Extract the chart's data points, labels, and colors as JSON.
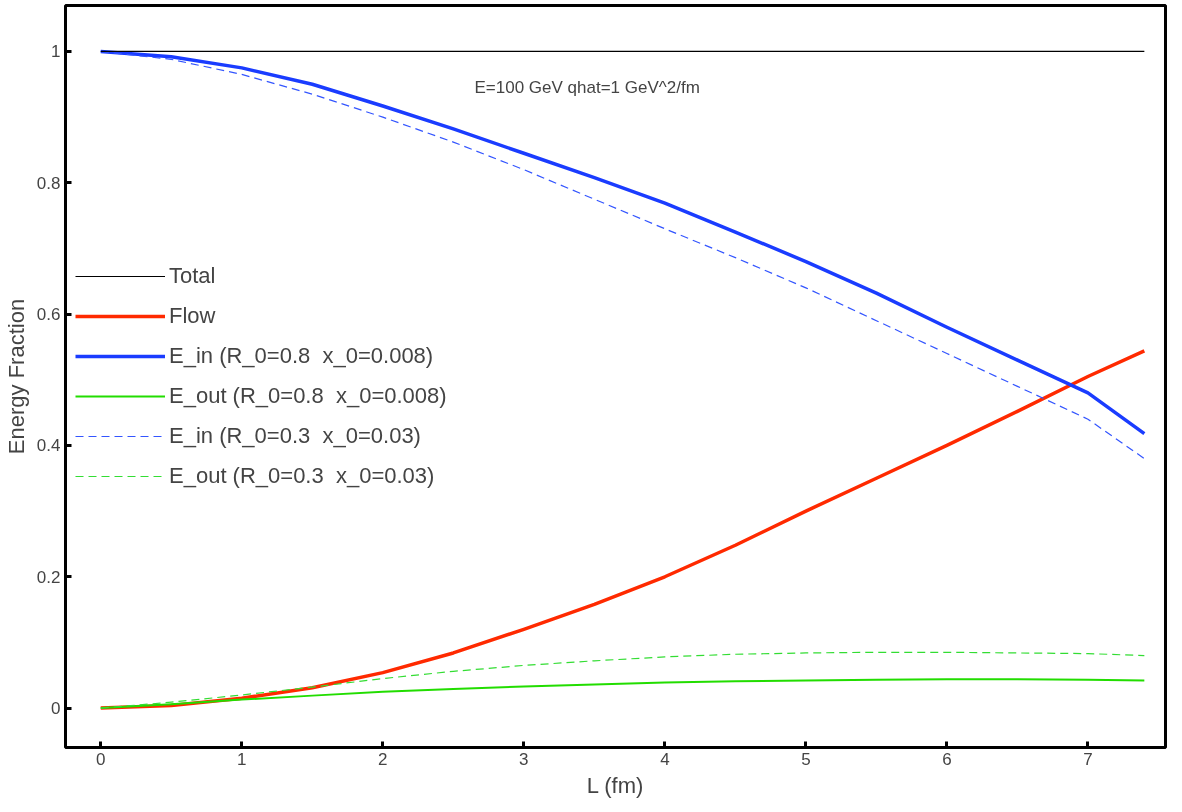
{
  "chart_data": {
    "type": "line",
    "xlabel": "L (fm)",
    "ylabel": "Energy Fraction",
    "annotations": [
      "E=100 GeV    qhat=1 GeV^2/fm"
    ],
    "xlim": [
      -0.25,
      7.55
    ],
    "ylim": [
      -0.06,
      1.07
    ],
    "xticks": [
      0,
      1,
      2,
      3,
      4,
      5,
      6,
      7
    ],
    "yticks": [
      0,
      0.2,
      0.4,
      0.6,
      0.8,
      1
    ],
    "x": [
      0,
      0.5,
      1,
      1.5,
      2,
      2.5,
      3,
      3.5,
      4,
      4.5,
      5,
      5.5,
      6,
      6.5,
      7,
      7.4
    ],
    "grid": false,
    "legend": "left",
    "marker": "none",
    "series": [
      {
        "name": "Total",
        "color": "#000000",
        "line_style": "solid",
        "values": [
          1,
          1,
          1,
          1,
          1,
          1,
          1,
          1,
          1,
          1,
          1,
          1,
          1,
          1,
          1,
          1
        ]
      },
      {
        "name": "Flow",
        "color": "#ff2a00",
        "line_style": "solid",
        "values": [
          0,
          0.004,
          0.015,
          0.031,
          0.054,
          0.084,
          0.12,
          0.158,
          0.2,
          0.248,
          0.3,
          0.35,
          0.4,
          0.452,
          0.505,
          0.544
        ]
      },
      {
        "name": "E_in (R_0=0.8  x_0=0.008)",
        "color": "#1a3cff",
        "line_style": "solid",
        "values": [
          1,
          0.992,
          0.975,
          0.95,
          0.917,
          0.882,
          0.845,
          0.808,
          0.769,
          0.725,
          0.68,
          0.632,
          0.58,
          0.53,
          0.48,
          0.418
        ]
      },
      {
        "name": "E_out (R_0=0.8  x_0=0.008)",
        "color": "#22dd00",
        "line_style": "solid",
        "values": [
          0,
          0.006,
          0.013,
          0.019,
          0.025,
          0.029,
          0.033,
          0.036,
          0.039,
          0.041,
          0.042,
          0.043,
          0.044,
          0.044,
          0.043,
          0.042
        ]
      },
      {
        "name": "E_in (R_0=0.3  x_0=0.03)",
        "color": "#3355ff",
        "line_style": "dashed",
        "values": [
          1,
          0.988,
          0.965,
          0.935,
          0.9,
          0.862,
          0.82,
          0.775,
          0.73,
          0.686,
          0.64,
          0.59,
          0.54,
          0.49,
          0.44,
          0.38
        ]
      },
      {
        "name": "E_out (R_0=0.3  x_0=0.03)",
        "color": "#33dd33",
        "line_style": "dashed",
        "values": [
          0,
          0.009,
          0.02,
          0.032,
          0.045,
          0.056,
          0.065,
          0.072,
          0.078,
          0.082,
          0.084,
          0.085,
          0.085,
          0.084,
          0.083,
          0.08
        ]
      }
    ]
  }
}
